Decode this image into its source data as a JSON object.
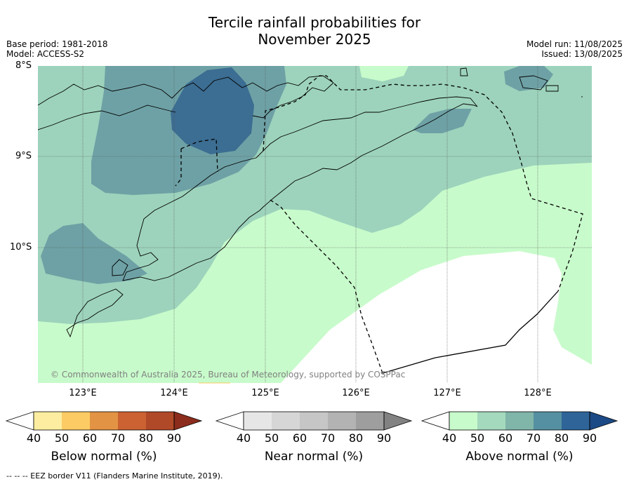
{
  "header": {
    "title_line1": "Tercile rainfall probabilities for",
    "title_line2": "November 2025",
    "base_period": "Base period: 1981-2018",
    "model": "Model: ACCESS-S2",
    "model_run": "Model run: 11/08/2025",
    "issued": "Issued: 13/08/2025"
  },
  "map": {
    "lat_ticks": [
      "8°S",
      "9°S",
      "10°S"
    ],
    "lon_ticks": [
      "123°E",
      "124°E",
      "125°E",
      "126°E",
      "127°E",
      "128°E"
    ],
    "copyright": "© Commonwealth of Australia 2025, Bureau of Meteorology, supported by COSPPac",
    "colors": {
      "above_40_50": "#c8fbcb",
      "above_50_60": "#9dd3bc",
      "above_60_70": "#6ea1a5",
      "above_70_80": "#3c6d92",
      "land_below": "#ffffff"
    }
  },
  "colorbars": [
    {
      "label": "Below normal (%)",
      "ticks": [
        "40",
        "50",
        "60",
        "70",
        "80",
        "90"
      ],
      "colors": [
        "#ffffff",
        "#fdeda0",
        "#fccb64",
        "#e39344",
        "#cc6232",
        "#b04928",
        "#8b2c1c"
      ]
    },
    {
      "label": "Near normal (%)",
      "ticks": [
        "40",
        "50",
        "60",
        "70",
        "80",
        "90"
      ],
      "colors": [
        "#ffffff",
        "#e6e6e6",
        "#d6d6d6",
        "#c6c6c6",
        "#b3b3b3",
        "#9e9e9e",
        "#828282"
      ]
    },
    {
      "label": "Above normal (%)",
      "ticks": [
        "40",
        "50",
        "60",
        "70",
        "80",
        "90"
      ],
      "colors": [
        "#ffffff",
        "#c8fbcb",
        "#a4d9bd",
        "#80b5aa",
        "#5590a2",
        "#2e6498",
        "#1c4a86"
      ]
    }
  ],
  "footer": {
    "legend_note": "--  --  -- EEZ border V11 (Flanders Marine Institute, 2019)."
  }
}
